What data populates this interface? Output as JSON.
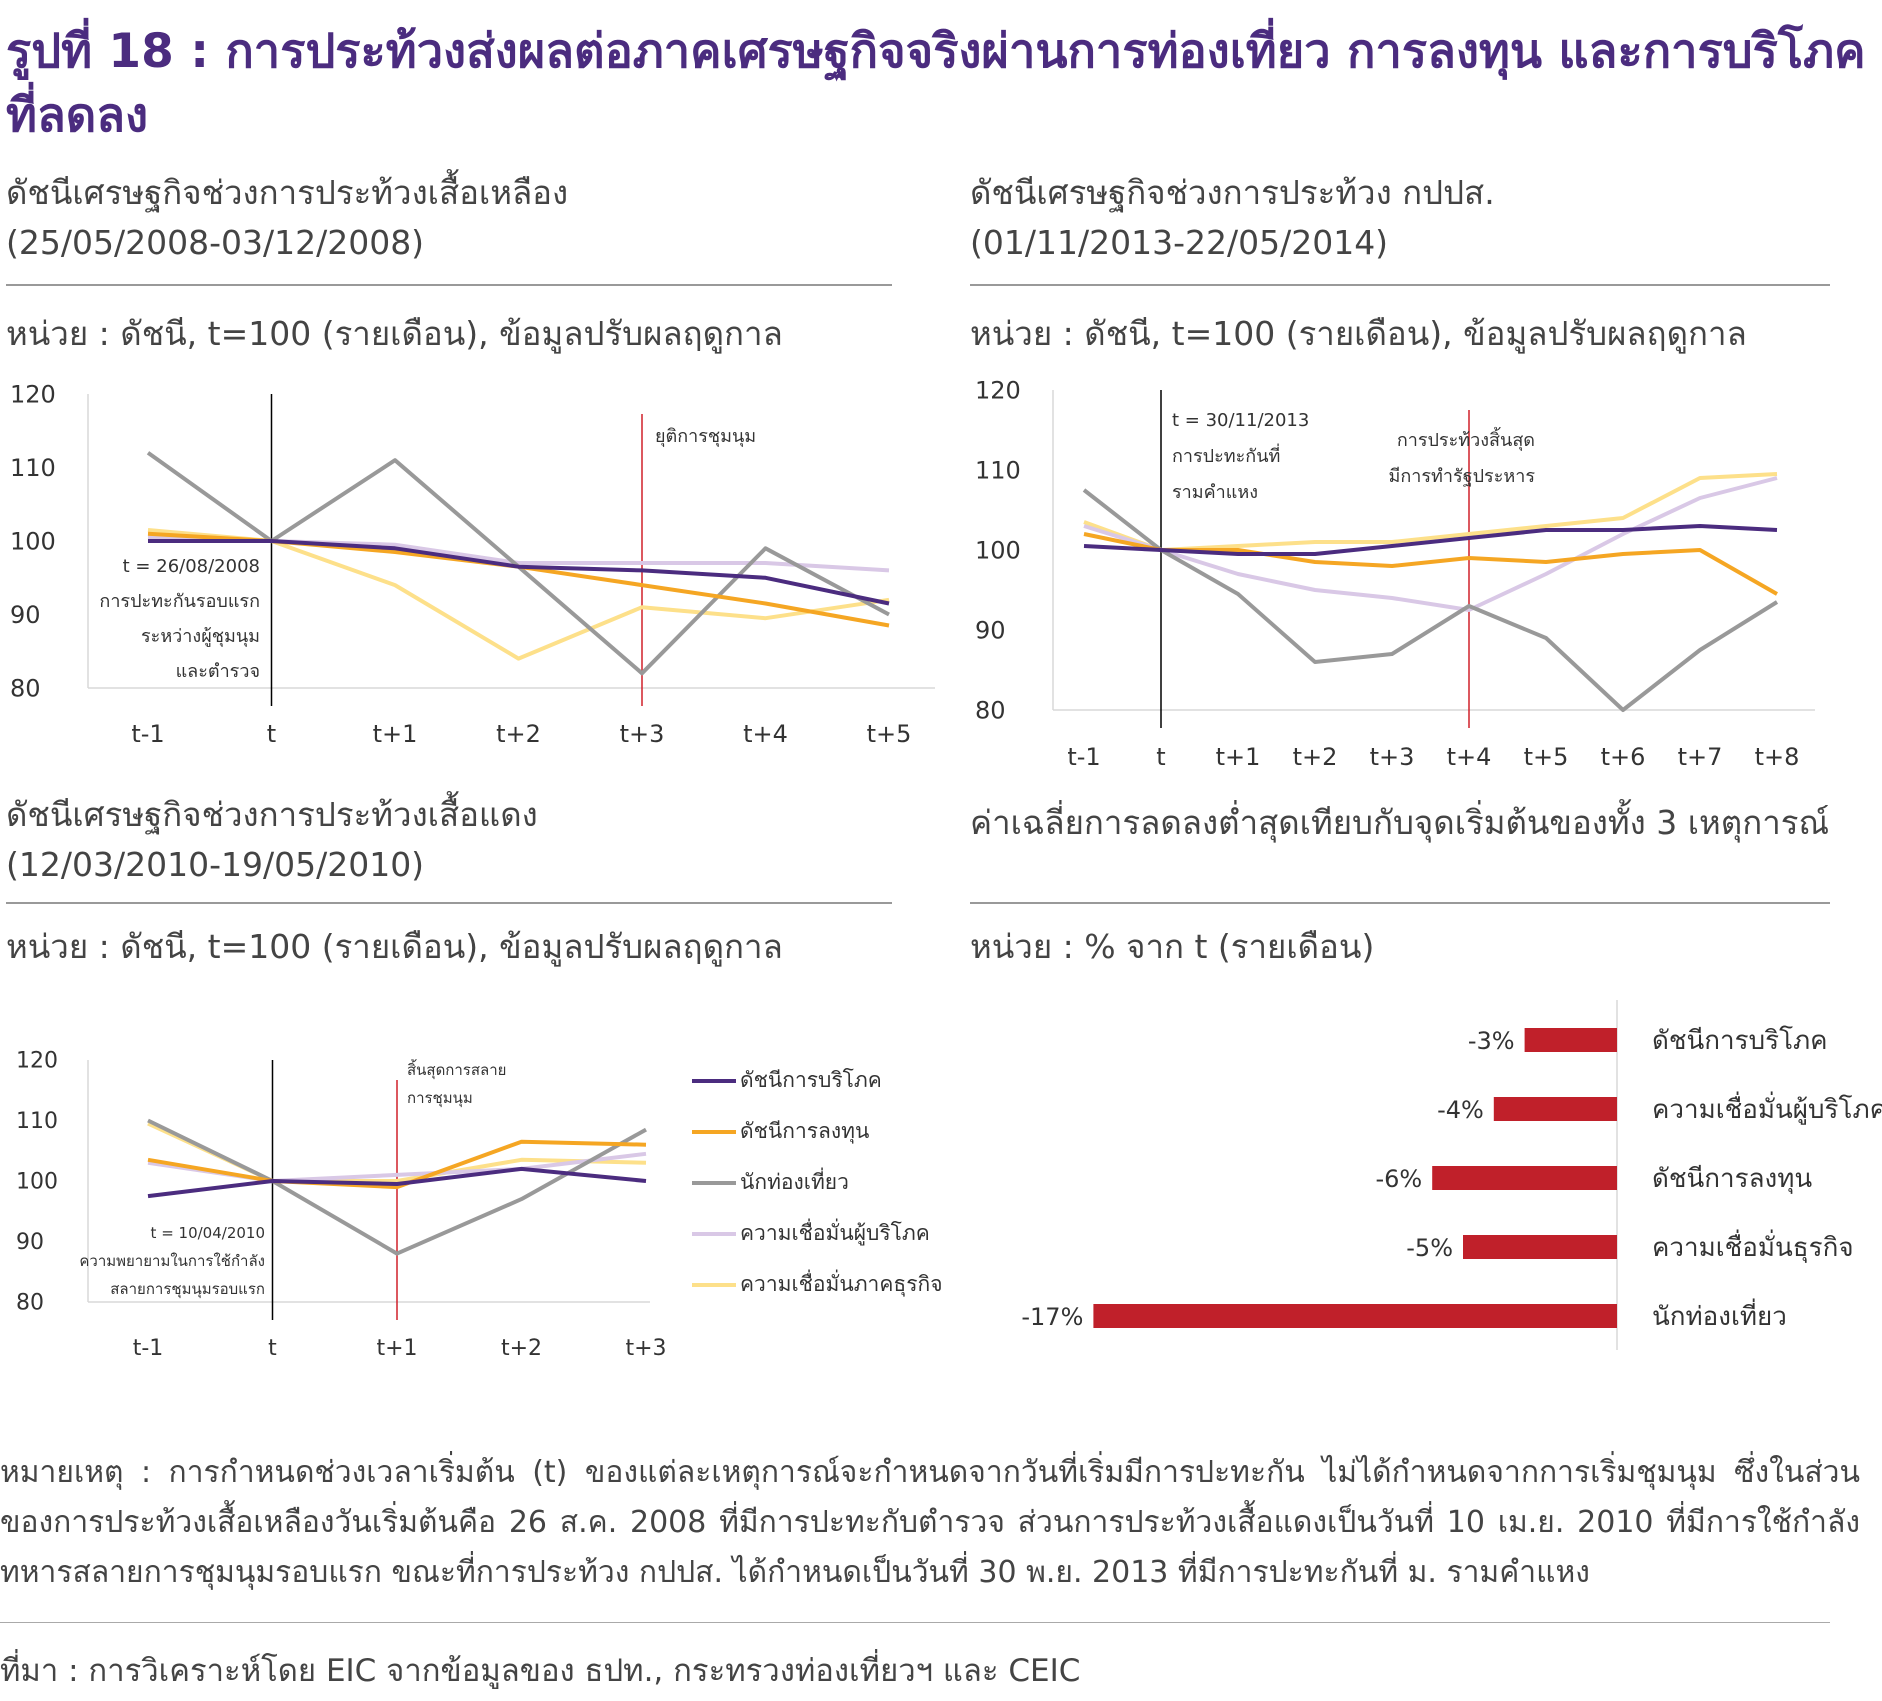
{
  "title": "รูปที่ 18 : การประท้วงส่งผลต่อภาคเศรษฐกิจจริงผ่านการท่องเที่ยว การลงทุน และการบริโภคที่ลดลง",
  "panels": {
    "p1": {
      "title": "ดัชนีเศรษฐกิจช่วงการประท้วงเสื้อเหลือง",
      "period": "(25/05/2008-03/12/2008)",
      "unit": "หน่วย : ดัชนี, t=100 (รายเดือน), ข้อมูลปรับผลฤดูกาล"
    },
    "p2": {
      "title": "ดัชนีเศรษฐกิจช่วงการประท้วง กปปส.",
      "period": "(01/11/2013-22/05/2014)",
      "unit": "หน่วย : ดัชนี, t=100 (รายเดือน), ข้อมูลปรับผลฤดูกาล"
    },
    "p3": {
      "title": "ดัชนีเศรษฐกิจช่วงการประท้วงเสื้อแดง",
      "period": "(12/03/2010-19/05/2010)",
      "unit": "หน่วย : ดัชนี, t=100 (รายเดือน), ข้อมูลปรับผลฤดูกาล"
    },
    "p4": {
      "title": "ค่าเฉลี่ยการลดลงต่ำสุดเทียบกับจุดเริ่มต้นของทั้ง 3 เหตุการณ์",
      "unit": "หน่วย : % จาก t (รายเดือน)"
    }
  },
  "legend": [
    {
      "label": "ดัชนีการบริโภค",
      "color": "#4b2c7f"
    },
    {
      "label": "ดัชนีการลงทุน",
      "color": "#f5a623"
    },
    {
      "label": "นักท่องเที่ยว",
      "color": "#999999"
    },
    {
      "label": "ความเชื่อมั่นผู้บริโภค",
      "color": "#d9c8e6"
    },
    {
      "label": "ความเชื่อมั่นภาคธุรกิจ",
      "color": "#fde08a"
    }
  ],
  "chart_data": [
    {
      "type": "line",
      "categories": [
        "t-1",
        "t",
        "t+1",
        "t+2",
        "t+3",
        "t+4",
        "t+5"
      ],
      "ylim": [
        80,
        120
      ],
      "yticks": [
        "120",
        "110",
        "100",
        "90",
        "80"
      ],
      "series": [
        {
          "name": "ดัชนีการบริโภค",
          "values": [
            100,
            100,
            99,
            96.5,
            96,
            95,
            91.5
          ]
        },
        {
          "name": "ดัชนีการลงทุน",
          "values": [
            101,
            100,
            98.5,
            96.5,
            94,
            91.5,
            88.5
          ]
        },
        {
          "name": "นักท่องเที่ยว",
          "values": [
            112,
            100,
            111,
            96.5,
            82,
            99,
            90
          ]
        },
        {
          "name": "ความเชื่อมั่นผู้บริโภค",
          "values": [
            100.5,
            100,
            99.5,
            97,
            97,
            97,
            96
          ]
        },
        {
          "name": "ความเชื่อมั่นภาคธุรกิจ",
          "values": [
            101.5,
            100,
            94,
            84,
            91,
            89.5,
            92
          ]
        }
      ],
      "annotations": {
        "start": [
          "t = 26/08/2008",
          "การปะทะกันรอบแรก",
          "ระหว่างผู้ชุมนุม",
          "และตำรวจ"
        ],
        "end": [
          "ยุติการชุมนุม"
        ]
      }
    },
    {
      "type": "line",
      "categories": [
        "t-1",
        "t",
        "t+1",
        "t+2",
        "t+3",
        "t+4",
        "t+5",
        "t+6",
        "t+7",
        "t+8"
      ],
      "ylim": [
        80,
        120
      ],
      "yticks": [
        "120",
        "110",
        "100",
        "90",
        "80"
      ],
      "series": [
        {
          "name": "ดัชนีการบริโภค",
          "values": [
            100.5,
            100,
            99.5,
            99.5,
            100.5,
            101.5,
            102.5,
            102.5,
            103,
            102.5
          ]
        },
        {
          "name": "ดัชนีการลงทุน",
          "values": [
            102,
            100,
            100,
            98.5,
            98,
            99,
            98.5,
            99.5,
            100,
            94.5
          ]
        },
        {
          "name": "นักท่องเที่ยว",
          "values": [
            107.5,
            100,
            94.5,
            86,
            87,
            93,
            89,
            80,
            87.5,
            93.5
          ]
        },
        {
          "name": "ความเชื่อมั่นผู้บริโภค",
          "values": [
            103,
            100,
            97,
            95,
            94,
            92.5,
            97,
            102,
            106.5,
            109
          ]
        },
        {
          "name": "ความเชื่อมั่นภาคธุรกิจ",
          "values": [
            103.5,
            100,
            100.5,
            101,
            101,
            102,
            103,
            104,
            109,
            109.5
          ]
        }
      ],
      "annotations": {
        "start": [
          "t = 30/11/2013",
          "การปะทะกันที่",
          "รามคำแหง"
        ],
        "end": [
          "การประท้วงสิ้นสุด",
          "มีการทำรัฐประหาร"
        ]
      }
    },
    {
      "type": "line",
      "categories": [
        "t-1",
        "t",
        "t+1",
        "t+2",
        "t+3"
      ],
      "ylim": [
        80,
        120
      ],
      "yticks": [
        "120",
        "110",
        "100",
        "90",
        "80"
      ],
      "series": [
        {
          "name": "ดัชนีการบริโภค",
          "values": [
            97.5,
            100,
            99.5,
            102,
            100
          ]
        },
        {
          "name": "ดัชนีการลงทุน",
          "values": [
            103.5,
            100,
            99,
            106.5,
            106
          ]
        },
        {
          "name": "นักท่องเที่ยว",
          "values": [
            110,
            100,
            88,
            97,
            108.5
          ]
        },
        {
          "name": "ความเชื่อมั่นผู้บริโภค",
          "values": [
            103,
            100,
            101,
            102,
            104.5
          ]
        },
        {
          "name": "ความเชื่อมั่นภาคธุรกิจ",
          "values": [
            109.5,
            100,
            100,
            103.5,
            103
          ]
        }
      ],
      "annotations": {
        "start": [
          "t = 10/04/2010",
          "ความพยายามในการใช้กำลัง",
          "สลายการชุมนุมรอบแรก"
        ],
        "end": [
          "สิ้นสุดการสลาย",
          "การชุมนุม"
        ]
      }
    },
    {
      "type": "bar",
      "orientation": "horizontal",
      "categories": [
        "ดัชนีการบริโภค",
        "ความเชื่อมั่นผู้บริโภค",
        "ดัชนีการลงทุน",
        "ความเชื่อมั่นธุรกิจ",
        "นักท่องเที่ยว"
      ],
      "values": [
        -3,
        -4,
        -6,
        -5,
        -17
      ],
      "data_labels": [
        "-3%",
        "-4%",
        "-6%",
        "-5%",
        "-17%"
      ],
      "color": "#c0202a"
    }
  ],
  "note": "หมายเหตุ : การกำหนดช่วงเวลาเริ่มต้น (t) ของแต่ละเหตุการณ์จะกำหนดจากวันที่เริ่มมีการปะทะกัน ไม่ได้กำหนดจากการเริ่มชุมนุม ซึ่งในส่วนของการประท้วงเสื้อเหลืองวันเริ่มต้นคือ 26 ส.ค. 2008 ที่มีการปะทะกับตำรวจ ส่วนการประท้วงเสื้อแดงเป็นวันที่ 10 เม.ย. 2010 ที่มีการใช้กำลังทหารสลายการชุมนุมรอบแรก ขณะที่การประท้วง กปปส. ได้กำหนดเป็นวันที่ 30 พ.ย. 2013 ที่มีการปะทะกันที่ ม. รามคำแหง",
  "source": "ที่มา : การวิเคราะห์โดย EIC  จากข้อมูลของ ธปท., กระทรวงท่องเที่ยวฯ และ CEIC"
}
